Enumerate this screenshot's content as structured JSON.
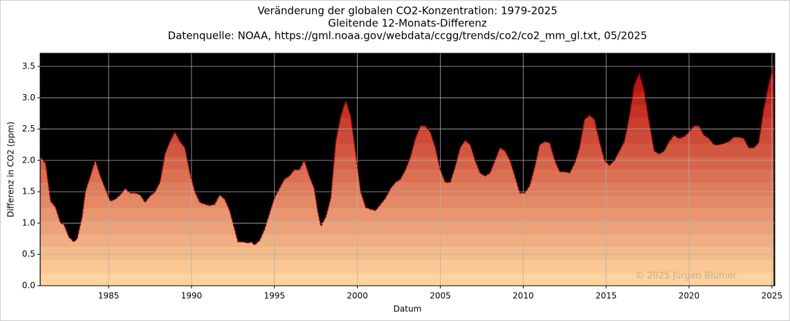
{
  "chart_data": {
    "type": "area",
    "title": "Veränderung der globalen CO2-Konzentration: 1979-2025",
    "subtitle": "Gleitende 12-Monats-Differenz",
    "source": "Datenquelle: NOAA, https://gml.noaa.gov/webdata/ccgg/trends/co2/co2_mm_gl.txt, 05/2025",
    "x_label": "Datum",
    "y_label": "Differenz in CO2 (ppm)",
    "annotation": "© 2025 Jürgen Blümer",
    "background": "#000000",
    "color": "#a00000",
    "grid": true,
    "xlim": [
      1980.87,
      2025.17
    ],
    "ylim": [
      0,
      3.71
    ],
    "xticks": [
      1985,
      1990,
      1995,
      2000,
      2005,
      2010,
      2015,
      2020,
      2025
    ],
    "yticks": [
      {
        "value": 0,
        "label": "0.0"
      },
      {
        "value": 0.5,
        "label": "0.5"
      },
      {
        "value": 1,
        "label": "1.0"
      },
      {
        "value": 1.5,
        "label": "1.5"
      },
      {
        "value": 2,
        "label": "2.0"
      },
      {
        "value": 2.5,
        "label": "2.5"
      },
      {
        "value": 3,
        "label": "3.0"
      },
      {
        "value": 3.5,
        "label": "3.5"
      }
    ],
    "x": [
      1980.9,
      1981.2,
      1981.5,
      1981.8,
      1982.1,
      1982.3,
      1982.6,
      1982.9,
      1983.1,
      1983.4,
      1983.6,
      1983.9,
      1984.2,
      1984.5,
      1984.8,
      1985.1,
      1985.4,
      1985.7,
      1986.0,
      1986.3,
      1986.6,
      1986.9,
      1987.2,
      1987.5,
      1987.8,
      1988.1,
      1988.4,
      1988.7,
      1989.0,
      1989.3,
      1989.6,
      1989.9,
      1990.2,
      1990.5,
      1990.8,
      1991.1,
      1991.4,
      1991.7,
      1992.0,
      1992.3,
      1992.6,
      1992.8,
      1993.1,
      1993.4,
      1993.6,
      1993.8,
      1994.1,
      1994.4,
      1994.7,
      1995.0,
      1995.3,
      1995.6,
      1995.9,
      1996.2,
      1996.5,
      1996.8,
      1997.1,
      1997.4,
      1997.6,
      1997.8,
      1998.1,
      1998.4,
      1998.7,
      1999.0,
      1999.3,
      1999.6,
      1999.9,
      2000.2,
      2000.5,
      2000.8,
      2001.1,
      2001.4,
      2001.7,
      2002.0,
      2002.3,
      2002.6,
      2002.9,
      2003.2,
      2003.5,
      2003.8,
      2004.1,
      2004.4,
      2004.7,
      2005.0,
      2005.3,
      2005.6,
      2005.9,
      2006.2,
      2006.5,
      2006.8,
      2007.1,
      2007.4,
      2007.7,
      2008.0,
      2008.3,
      2008.6,
      2008.9,
      2009.2,
      2009.5,
      2009.8,
      2010.1,
      2010.4,
      2010.7,
      2011.0,
      2011.3,
      2011.6,
      2011.9,
      2012.2,
      2012.5,
      2012.8,
      2013.1,
      2013.4,
      2013.7,
      2014.0,
      2014.3,
      2014.6,
      2014.9,
      2015.2,
      2015.5,
      2015.8,
      2016.1,
      2016.4,
      2016.7,
      2017.0,
      2017.3,
      2017.6,
      2017.9,
      2018.2,
      2018.5,
      2018.8,
      2019.1,
      2019.4,
      2019.7,
      2020.0,
      2020.3,
      2020.6,
      2020.9,
      2021.2,
      2021.5,
      2021.8,
      2022.1,
      2022.4,
      2022.7,
      2023.0,
      2023.3,
      2023.6,
      2023.9,
      2024.2,
      2024.5,
      2024.8,
      2025.1
    ],
    "values": [
      2.05,
      1.95,
      1.35,
      1.25,
      1.0,
      0.98,
      0.78,
      0.7,
      0.75,
      1.1,
      1.5,
      1.75,
      2.0,
      1.75,
      1.55,
      1.35,
      1.38,
      1.45,
      1.55,
      1.48,
      1.48,
      1.45,
      1.33,
      1.43,
      1.5,
      1.65,
      2.1,
      2.3,
      2.45,
      2.3,
      2.2,
      1.8,
      1.5,
      1.33,
      1.3,
      1.28,
      1.3,
      1.45,
      1.38,
      1.2,
      0.9,
      0.7,
      0.7,
      0.68,
      0.7,
      0.65,
      0.72,
      0.9,
      1.15,
      1.4,
      1.55,
      1.7,
      1.75,
      1.85,
      1.85,
      2.0,
      1.75,
      1.55,
      1.2,
      0.95,
      1.1,
      1.4,
      2.3,
      2.7,
      2.95,
      2.7,
      2.1,
      1.5,
      1.25,
      1.22,
      1.2,
      1.3,
      1.4,
      1.55,
      1.65,
      1.7,
      1.85,
      2.05,
      2.35,
      2.55,
      2.55,
      2.45,
      2.2,
      1.85,
      1.65,
      1.65,
      1.9,
      2.2,
      2.32,
      2.25,
      2.0,
      1.8,
      1.75,
      1.8,
      2.0,
      2.2,
      2.15,
      2.0,
      1.75,
      1.48,
      1.48,
      1.6,
      1.9,
      2.25,
      2.3,
      2.28,
      2.0,
      1.82,
      1.82,
      1.8,
      1.95,
      2.2,
      2.65,
      2.72,
      2.65,
      2.3,
      2.0,
      1.92,
      2.0,
      2.15,
      2.3,
      2.7,
      3.2,
      3.38,
      3.1,
      2.6,
      2.15,
      2.1,
      2.15,
      2.3,
      2.4,
      2.35,
      2.38,
      2.45,
      2.55,
      2.55,
      2.4,
      2.35,
      2.25,
      2.25,
      2.27,
      2.3,
      2.37,
      2.37,
      2.35,
      2.2,
      2.2,
      2.28,
      2.8,
      3.2,
      3.5
    ]
  }
}
